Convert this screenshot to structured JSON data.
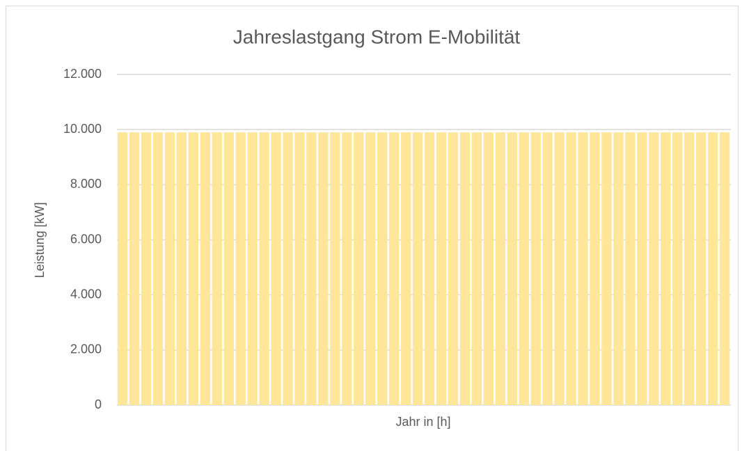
{
  "chart_data": {
    "type": "bar",
    "title": "Jahreslastgang Strom E-Mobilität",
    "x_label": "Jahr in [h]",
    "y_label": "Leistung [kW]",
    "categories": [
      null,
      null,
      null,
      null,
      null,
      null,
      null,
      null,
      null,
      null,
      null,
      null,
      null,
      null,
      null,
      null,
      null,
      null,
      null,
      null,
      null,
      null,
      null,
      null,
      null,
      null,
      null,
      null,
      null,
      null,
      null,
      null,
      null,
      null,
      null,
      null,
      null,
      null,
      null,
      null,
      null,
      null,
      null,
      null,
      null,
      null,
      null,
      null,
      null,
      null,
      null,
      null
    ],
    "values": [
      9900,
      9900,
      9900,
      9900,
      9900,
      9900,
      9900,
      9900,
      9900,
      9900,
      9900,
      9900,
      9900,
      9900,
      9900,
      9900,
      9900,
      9900,
      9900,
      9900,
      9900,
      9900,
      9900,
      9900,
      9900,
      9900,
      9900,
      9900,
      9900,
      9900,
      9900,
      9900,
      9900,
      9900,
      9900,
      9900,
      9900,
      9900,
      9900,
      9900,
      9900,
      9900,
      9900,
      9900,
      9900,
      9900,
      9900,
      9900,
      9900,
      9900,
      9900,
      9900
    ],
    "color": "#ffe699",
    "ylim": [
      0,
      12000
    ],
    "yticks": [
      0,
      {
        "value": 2000,
        "label": "2.000"
      },
      {
        "value": 4000,
        "label": "4.000"
      },
      {
        "value": 6000,
        "label": "6.000"
      },
      {
        "value": 8000,
        "label": "8.000"
      },
      {
        "value": 10000,
        "label": "10.000"
      },
      {
        "value": 12000,
        "label": "12.000"
      }
    ],
    "grid": true
  }
}
